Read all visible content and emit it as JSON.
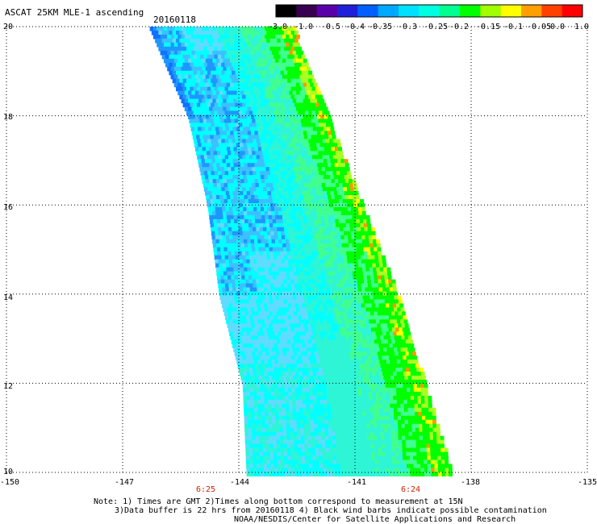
{
  "header": {
    "title": "ASCAT 25KM MLE-1 ascending",
    "date": "20160118"
  },
  "colorbar": {
    "colors": [
      "#000000",
      "#3a0050",
      "#5a00a8",
      "#2020d8",
      "#0060ff",
      "#00a8ff",
      "#00e0ff",
      "#00ffe0",
      "#00ff90",
      "#00ff00",
      "#a0ff00",
      "#ffff00",
      "#ffa000",
      "#ff4000",
      "#ff0000"
    ],
    "tick_labels": [
      "-3.0",
      "-1.0",
      "-0.5",
      "-0.4",
      "-0.35",
      "-0.3",
      "-0.25",
      "-0.2",
      "-0.15",
      "-0.1",
      "-0.05",
      "0.0",
      "1.0"
    ]
  },
  "axes": {
    "x_ticks": [
      "-150",
      "-147",
      "-144",
      "-141",
      "-138",
      "-135"
    ],
    "y_ticks": [
      "20",
      "18",
      "16",
      "14",
      "12",
      "10"
    ],
    "time_labels": [
      "6:25",
      "6:24"
    ],
    "time_color": "#cc2200"
  },
  "notes": {
    "line1": "Note: 1) Times are GMT 2)Times along bottom correspond to measurement at 15N",
    "line2": "3)Data buffer is 22 hrs from 20160118 4) Black wind barbs indicate possible contamination",
    "line3": "NOAA/NESDIS/Center for Satellite Applications and Research"
  },
  "chart_data": {
    "type": "heatmap",
    "title": "ASCAT 25KM MLE-1 ascending",
    "date": "20160118",
    "xlim": [
      -150,
      -135
    ],
    "ylim": [
      10,
      20
    ],
    "x_ticks": [
      -150,
      -147,
      -144,
      -141,
      -138,
      -135
    ],
    "y_ticks": [
      10,
      12,
      14,
      16,
      18,
      20
    ],
    "grid": true,
    "colorbar_ticks": [
      -3.0,
      -1.0,
      -0.5,
      -0.4,
      -0.35,
      -0.3,
      -0.25,
      -0.2,
      -0.15,
      -0.1,
      -0.05,
      0.0,
      1.0
    ],
    "swath": {
      "west_edge": [
        [
          20,
          -146.3
        ],
        [
          18,
          -145.3
        ],
        [
          16,
          -144.8
        ],
        [
          14,
          -144.5
        ],
        [
          12,
          -143.9
        ],
        [
          10,
          -143.8
        ]
      ],
      "east_edge": [
        [
          20,
          -142.6
        ],
        [
          18,
          -141.7
        ],
        [
          16,
          -140.8
        ],
        [
          14,
          -139.9
        ],
        [
          12,
          -139.2
        ],
        [
          10,
          -138.5
        ]
      ]
    }
  }
}
